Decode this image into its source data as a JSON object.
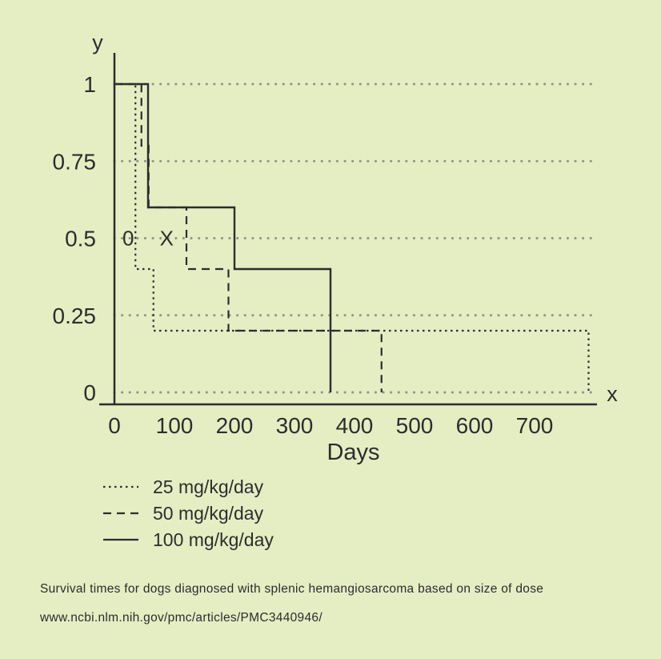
{
  "figure": {
    "caption_line1": "Survival times for dogs diagnosed with splenic hemangiosarcoma based on size of dose",
    "caption_line2": "www.ncbi.nlm.nih.gov/pmc/articles/PMC3440946/"
  },
  "chart_data": {
    "type": "line",
    "subtype": "step-survival",
    "title": "",
    "xlabel": "Days",
    "ylabel": "",
    "x_axis_letter": "x",
    "y_axis_letter": "y",
    "xlim": [
      0,
      800
    ],
    "ylim": [
      0,
      1
    ],
    "xticks": [
      0,
      100,
      200,
      300,
      400,
      500,
      600,
      700
    ],
    "yticks": [
      0,
      0.25,
      0.5,
      0.75,
      1
    ],
    "ytick_labels": [
      "0",
      "0.25",
      "0.5",
      "0.75",
      "1"
    ],
    "grid": "horizontal-dotted",
    "legend_position": "below-left",
    "colors": {
      "line": "#2d2d2d",
      "grid": "#8d9483",
      "background": "#e5edc3"
    },
    "series": [
      {
        "name": "25 mg/kg/day",
        "style": "dotted",
        "points": [
          [
            0,
            1
          ],
          [
            35,
            1
          ],
          [
            35,
            0.4
          ],
          [
            65,
            0.4
          ],
          [
            65,
            0.2
          ],
          [
            790,
            0.2
          ],
          [
            790,
            0
          ]
        ]
      },
      {
        "name": "50 mg/kg/day",
        "style": "dashed",
        "points": [
          [
            0,
            1
          ],
          [
            45,
            1
          ],
          [
            45,
            0.8
          ],
          [
            57,
            0.8
          ],
          [
            57,
            0.6
          ],
          [
            120,
            0.6
          ],
          [
            120,
            0.4
          ],
          [
            190,
            0.4
          ],
          [
            190,
            0.2
          ],
          [
            445,
            0.2
          ],
          [
            445,
            0
          ]
        ]
      },
      {
        "name": "100 mg/kg/day",
        "style": "solid",
        "points": [
          [
            0,
            1
          ],
          [
            56,
            1
          ],
          [
            56,
            0.6
          ],
          [
            200,
            0.6
          ],
          [
            200,
            0.4
          ],
          [
            360,
            0.4
          ],
          [
            360,
            0
          ]
        ]
      }
    ],
    "annotations": [
      {
        "text": "0",
        "x": 23,
        "y": 0.5
      },
      {
        "text": "X",
        "x": 87,
        "y": 0.5
      }
    ]
  }
}
